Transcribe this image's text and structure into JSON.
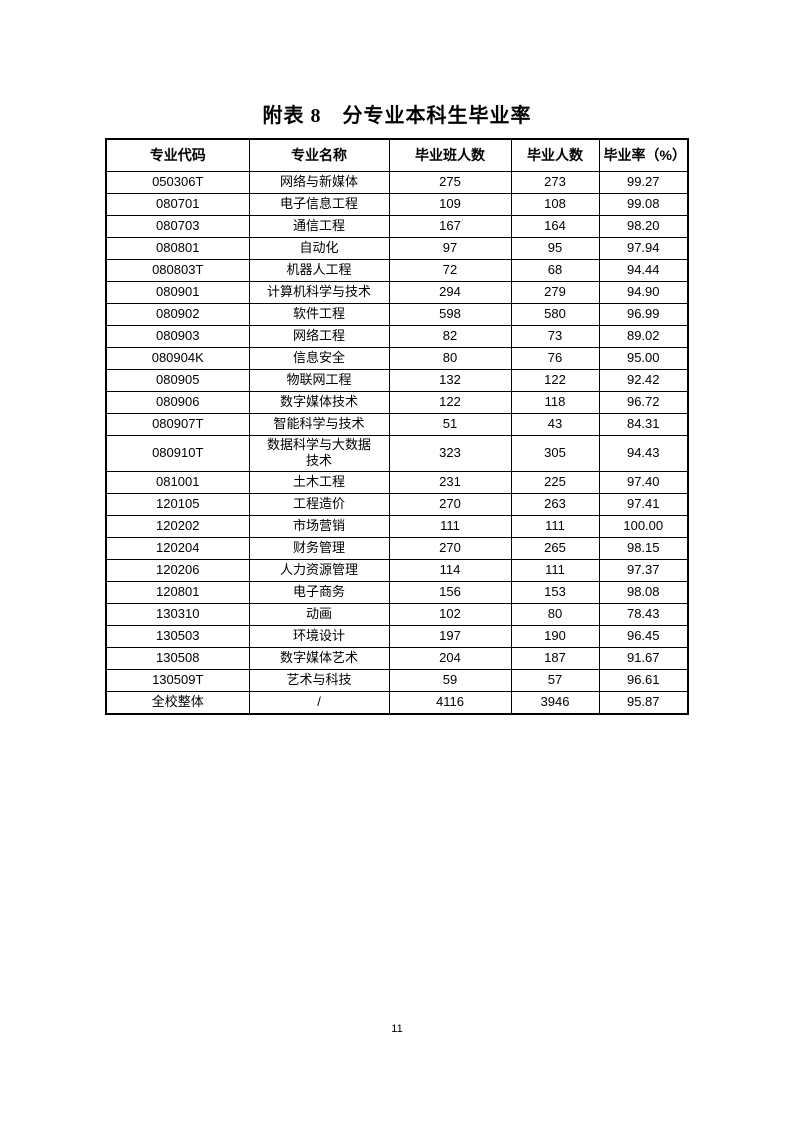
{
  "page": {
    "title": "附表 8　分专业本科生毕业率",
    "page_number": "11"
  },
  "table": {
    "headers": [
      "专业代码",
      "专业名称",
      "毕业班人数",
      "毕业人数",
      "毕业率（%）"
    ],
    "rows": [
      [
        "050306T",
        "网络与新媒体",
        "275",
        "273",
        "99.27"
      ],
      [
        "080701",
        "电子信息工程",
        "109",
        "108",
        "99.08"
      ],
      [
        "080703",
        "通信工程",
        "167",
        "164",
        "98.20"
      ],
      [
        "080801",
        "自动化",
        "97",
        "95",
        "97.94"
      ],
      [
        "080803T",
        "机器人工程",
        "72",
        "68",
        "94.44"
      ],
      [
        "080901",
        "计算机科学与技术",
        "294",
        "279",
        "94.90"
      ],
      [
        "080902",
        "软件工程",
        "598",
        "580",
        "96.99"
      ],
      [
        "080903",
        "网络工程",
        "82",
        "73",
        "89.02"
      ],
      [
        "080904K",
        "信息安全",
        "80",
        "76",
        "95.00"
      ],
      [
        "080905",
        "物联网工程",
        "132",
        "122",
        "92.42"
      ],
      [
        "080906",
        "数字媒体技术",
        "122",
        "118",
        "96.72"
      ],
      [
        "080907T",
        "智能科学与技术",
        "51",
        "43",
        "84.31"
      ],
      [
        "080910T",
        "数据科学与大数据\n技术",
        "323",
        "305",
        "94.43"
      ],
      [
        "081001",
        "土木工程",
        "231",
        "225",
        "97.40"
      ],
      [
        "120105",
        "工程造价",
        "270",
        "263",
        "97.41"
      ],
      [
        "120202",
        "市场营销",
        "111",
        "111",
        "100.00"
      ],
      [
        "120204",
        "财务管理",
        "270",
        "265",
        "98.15"
      ],
      [
        "120206",
        "人力资源管理",
        "114",
        "111",
        "97.37"
      ],
      [
        "120801",
        "电子商务",
        "156",
        "153",
        "98.08"
      ],
      [
        "130310",
        "动画",
        "102",
        "80",
        "78.43"
      ],
      [
        "130503",
        "环境设计",
        "197",
        "190",
        "96.45"
      ],
      [
        "130508",
        "数字媒体艺术",
        "204",
        "187",
        "91.67"
      ],
      [
        "130509T",
        "艺术与科技",
        "59",
        "57",
        "96.61"
      ],
      [
        "全校整体",
        "/",
        "4116",
        "3946",
        "95.87"
      ]
    ]
  }
}
